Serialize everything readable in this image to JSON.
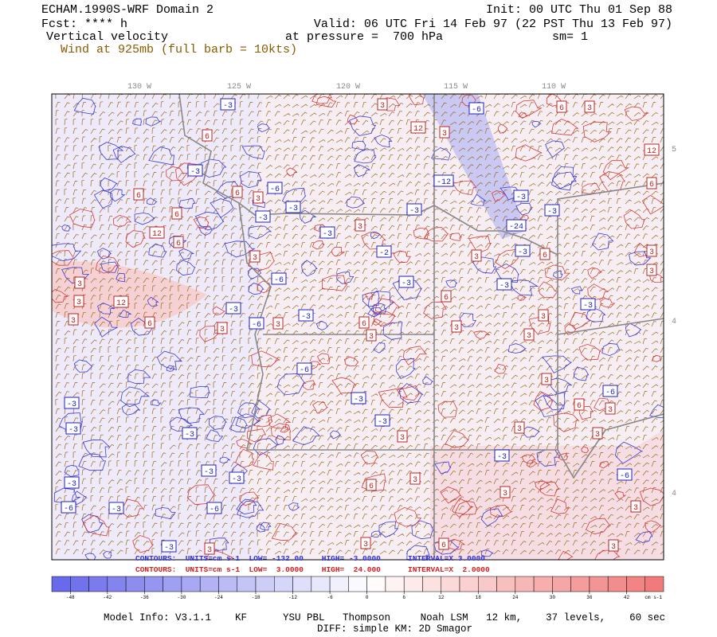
{
  "header": {
    "title": "ECHAM.1990S-WRF Domain 2",
    "forecast": "Fcst: **** h",
    "field": "Vertical velocity",
    "wind": "Wind at 925mb (full barb = 10kts)",
    "init": "Init: 00 UTC Thu 01 Sep 88",
    "valid": "Valid: 06 UTC Fri 14 Feb 97 (22 PST Thu 13 Feb 97)",
    "pressure": "at pressure =  700 hPa",
    "smoothing": "sm= 1"
  },
  "map": {
    "longitude_labels": [
      "130 W",
      "125 W",
      "120 W",
      "115 W",
      "110 W"
    ],
    "latitude_labels": [
      "5",
      "4",
      "4"
    ],
    "contour_labels": [
      "-3",
      "-6",
      "-3",
      "-6",
      "-3",
      "-3",
      "-3",
      "-3",
      "-2",
      "-6",
      "-3",
      "-3",
      "-6",
      "-3",
      "-6",
      "-3",
      "-3",
      "-3",
      "-3",
      "-3",
      "-3",
      "-6",
      "-3",
      "-3",
      "-3",
      "-6",
      "-3",
      "-3",
      "-6",
      "-6",
      "-24",
      "-12",
      "-3",
      "-3",
      "-3",
      "-3",
      "-3",
      "3",
      "12",
      "3",
      "6",
      "3",
      "12",
      "6",
      "6",
      "6",
      "6",
      "3",
      "12",
      "6",
      "3",
      "6",
      "3",
      "12",
      "3",
      "6",
      "3",
      "3",
      "3",
      "6",
      "3",
      "3",
      "3",
      "6",
      "3",
      "3",
      "3",
      "6",
      "3",
      "3",
      "3",
      "6",
      "3",
      "3",
      "3",
      "3",
      "6",
      "3",
      "3",
      "3",
      "6",
      "3",
      "3",
      "3",
      "3",
      "3"
    ]
  },
  "contour_info": {
    "negative": "CONTOURS:  UNITS=cm s-1  LOW= -132.00    HIGH= -3.0000      INTERVAL=X 3.0000",
    "positive": "CONTOURS:  UNITS=cm s-1  LOW=  3.0000    HIGH=  24.000      INTERVAL=X  2.0000"
  },
  "colorbar": {
    "clim": [
      -51,
      48
    ],
    "ticks": [
      -48,
      -42,
      -36,
      -30,
      -24,
      -18,
      -12,
      -6,
      0,
      6,
      12,
      18,
      24,
      30,
      36,
      42
    ],
    "units": "cm s-1"
  },
  "footer": {
    "model_info": "Model Info: V3.1.1    KF      YSU PBL   Thompson     Noah LSM   12 km,    37 levels,    60 sec",
    "diff": "DIFF: simple KM: 2D Smagor"
  }
}
